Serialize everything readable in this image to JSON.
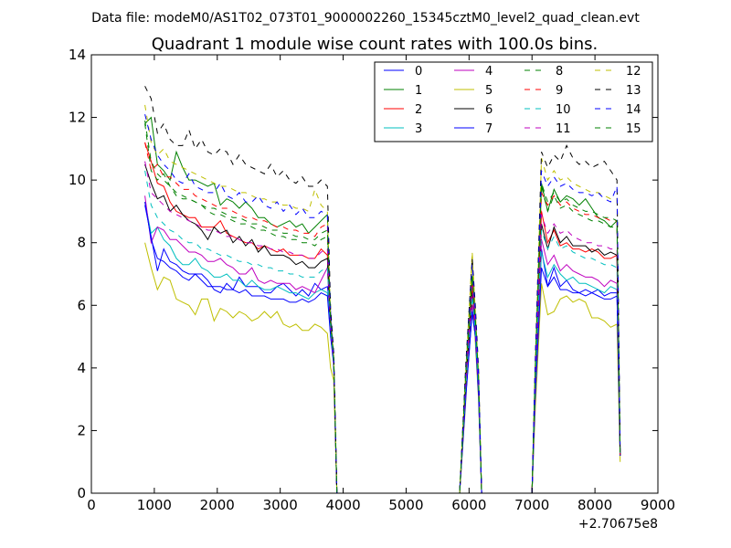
{
  "header": {
    "data_file": "Data file: modeM0/AS1T02_073T01_9000002260_15345cztM0_level2_quad_clean.evt"
  },
  "chart_data": {
    "type": "line",
    "title": "Quadrant 1 module wise count rates with 100.0s bins.",
    "xlabel": "",
    "ylabel": "",
    "x_offset_label": "+2.70675e8",
    "xlim": [
      0,
      9000
    ],
    "ylim": [
      0,
      14
    ],
    "x_ticks": [
      0,
      1000,
      2000,
      3000,
      4000,
      5000,
      6000,
      7000,
      8000,
      9000
    ],
    "y_ticks": [
      0,
      2,
      4,
      6,
      8,
      10,
      12,
      14
    ],
    "grid": false,
    "legend_position": "top-right",
    "legend_columns": 4,
    "x": [
      850,
      950,
      1050,
      1150,
      1250,
      1350,
      1450,
      1550,
      1650,
      1750,
      1850,
      1950,
      2050,
      2150,
      2250,
      2350,
      2450,
      2550,
      2650,
      2750,
      2850,
      2950,
      3050,
      3150,
      3250,
      3350,
      3450,
      3550,
      3650,
      3750,
      3800,
      3850,
      3900,
      4000,
      5000,
      5850,
      5950,
      6050,
      6100,
      6150,
      6200,
      6300,
      7000,
      7050,
      7150,
      7250,
      7350,
      7450,
      7550,
      7650,
      7750,
      7850,
      7950,
      8050,
      8150,
      8250,
      8350,
      8400
    ],
    "series": [
      {
        "name": "0",
        "color": "#0000ff",
        "dash": "solid",
        "values": [
          9.2,
          8.2,
          7.1,
          7.8,
          7.4,
          7.3,
          7.1,
          7.0,
          7.0,
          7.0,
          6.8,
          6.5,
          6.4,
          6.7,
          6.5,
          6.9,
          6.6,
          6.6,
          6.6,
          6.4,
          6.4,
          6.6,
          6.7,
          6.5,
          6.3,
          6.5,
          6.3,
          6.7,
          6.5,
          6.6,
          5.8,
          4.2,
          0,
          0,
          0,
          0,
          3.2,
          5.8,
          5.0,
          3.2,
          0,
          0,
          0,
          3.0,
          7.8,
          6.6,
          7.2,
          6.6,
          6.8,
          6.5,
          6.4,
          6.5,
          6.4,
          6.5,
          6.3,
          6.4,
          6.4,
          1.2
        ]
      },
      {
        "name": "1",
        "color": "#008000",
        "dash": "solid",
        "values": [
          11.8,
          12.0,
          10.5,
          10.3,
          10.0,
          10.9,
          10.4,
          10.0,
          10.0,
          9.9,
          9.8,
          9.9,
          9.2,
          9.4,
          9.3,
          9.1,
          9.3,
          9.1,
          8.8,
          8.8,
          8.6,
          8.5,
          8.6,
          8.7,
          8.5,
          8.6,
          8.3,
          8.5,
          8.7,
          8.9,
          5.2,
          4.3,
          0,
          0,
          0,
          0,
          3.8,
          6.8,
          5.4,
          3.6,
          0,
          0,
          0,
          3.8,
          9.9,
          9.0,
          9.7,
          9.3,
          9.5,
          9.4,
          9.2,
          9.4,
          9.1,
          8.8,
          8.7,
          8.5,
          8.7,
          1.2
        ]
      },
      {
        "name": "2",
        "color": "#ff0000",
        "dash": "solid",
        "values": [
          11.2,
          10.6,
          9.9,
          9.8,
          9.3,
          9.0,
          8.9,
          8.8,
          8.8,
          8.5,
          8.5,
          8.5,
          8.7,
          8.3,
          8.2,
          8.1,
          8.0,
          8.0,
          7.8,
          7.9,
          7.8,
          7.7,
          7.8,
          7.6,
          7.6,
          7.6,
          7.5,
          7.5,
          7.8,
          7.6,
          5.2,
          4.2,
          0,
          0,
          0,
          0,
          3.6,
          6.5,
          5.2,
          3.4,
          0,
          0,
          0,
          3.6,
          9.0,
          8.0,
          8.4,
          7.9,
          8.0,
          7.8,
          7.8,
          7.7,
          7.8,
          7.7,
          7.5,
          7.5,
          7.6,
          1.2
        ]
      },
      {
        "name": "3",
        "color": "#00bfbf",
        "dash": "solid",
        "values": [
          9.3,
          8.3,
          8.5,
          8.1,
          7.9,
          7.5,
          7.3,
          7.3,
          7.5,
          7.2,
          7.1,
          6.9,
          6.9,
          7.0,
          6.8,
          6.8,
          6.6,
          6.8,
          6.6,
          6.5,
          6.5,
          6.6,
          6.5,
          6.4,
          6.4,
          6.3,
          6.2,
          6.4,
          6.5,
          6.4,
          5.0,
          4.2,
          0,
          0,
          0,
          0,
          3.2,
          5.8,
          5.0,
          3.2,
          0,
          0,
          0,
          3.1,
          7.7,
          6.9,
          7.3,
          7.0,
          6.8,
          6.9,
          6.7,
          6.7,
          6.6,
          6.5,
          6.4,
          6.6,
          6.5,
          1.2
        ]
      },
      {
        "name": "4",
        "color": "#bf00bf",
        "dash": "solid",
        "values": [
          9.5,
          8.0,
          8.5,
          8.4,
          8.1,
          8.1,
          7.9,
          7.7,
          7.7,
          7.6,
          7.4,
          7.4,
          7.5,
          7.3,
          7.2,
          7.0,
          7.0,
          7.2,
          6.8,
          6.7,
          6.8,
          6.7,
          6.7,
          6.7,
          6.5,
          6.6,
          6.5,
          6.4,
          6.8,
          7.2,
          5.2,
          4.2,
          0,
          0,
          0,
          0,
          3.3,
          6.0,
          5.2,
          3.3,
          0,
          0,
          0,
          3.3,
          8.1,
          7.3,
          7.6,
          7.1,
          7.3,
          7.1,
          7.0,
          6.9,
          6.9,
          6.8,
          6.6,
          6.8,
          6.7,
          1.2
        ]
      },
      {
        "name": "5",
        "color": "#bfbf00",
        "dash": "solid",
        "values": [
          8.0,
          7.2,
          6.5,
          6.9,
          6.8,
          6.2,
          6.1,
          6.0,
          5.7,
          6.2,
          6.2,
          5.5,
          5.9,
          5.8,
          5.6,
          5.8,
          5.7,
          5.5,
          5.6,
          5.8,
          5.6,
          5.8,
          5.4,
          5.3,
          5.4,
          5.2,
          5.2,
          5.4,
          5.3,
          5.1,
          4.0,
          3.6,
          0,
          0,
          0,
          0,
          3.0,
          7.6,
          4.8,
          3.0,
          0,
          0,
          0,
          2.6,
          6.7,
          5.7,
          5.8,
          6.2,
          6.3,
          6.1,
          6.2,
          6.1,
          5.6,
          5.6,
          5.5,
          5.3,
          5.4,
          1.0
        ]
      },
      {
        "name": "6",
        "color": "#000000",
        "dash": "solid",
        "values": [
          10.5,
          9.9,
          9.4,
          9.5,
          9.0,
          9.2,
          8.9,
          8.7,
          8.6,
          8.4,
          8.1,
          8.5,
          8.3,
          8.4,
          8.0,
          8.2,
          7.9,
          8.1,
          7.7,
          7.9,
          7.6,
          7.6,
          7.6,
          7.5,
          7.3,
          7.4,
          7.2,
          7.2,
          7.4,
          7.5,
          5.2,
          4.3,
          0,
          0,
          0,
          0,
          3.6,
          6.4,
          5.3,
          3.4,
          0,
          0,
          0,
          3.5,
          8.6,
          7.8,
          8.5,
          8.0,
          8.2,
          7.9,
          7.9,
          7.9,
          7.7,
          7.8,
          7.6,
          7.7,
          7.6,
          1.2
        ]
      },
      {
        "name": "7",
        "color": "#0000ff",
        "dash": "solid",
        "values": [
          9.3,
          8.1,
          7.5,
          7.4,
          7.2,
          7.1,
          6.9,
          6.8,
          7.0,
          6.8,
          6.6,
          6.6,
          6.6,
          6.5,
          6.5,
          6.4,
          6.5,
          6.3,
          6.3,
          6.3,
          6.2,
          6.2,
          6.2,
          6.1,
          6.1,
          6.2,
          6.1,
          6.2,
          6.4,
          6.3,
          5.0,
          4.1,
          0,
          0,
          0,
          0,
          3.1,
          5.8,
          5.0,
          3.1,
          0,
          0,
          0,
          3.0,
          7.2,
          6.6,
          6.9,
          6.5,
          6.5,
          6.4,
          6.4,
          6.3,
          6.4,
          6.3,
          6.2,
          6.2,
          6.3,
          1.2
        ]
      },
      {
        "name": "8",
        "color": "#008000",
        "dash": "dash",
        "values": [
          11.8,
          10.3,
          10.0,
          10.2,
          9.8,
          9.5,
          9.4,
          9.4,
          9.3,
          9.2,
          9.0,
          8.9,
          8.9,
          8.8,
          8.7,
          8.6,
          8.6,
          8.5,
          8.4,
          8.4,
          8.3,
          8.2,
          8.2,
          8.1,
          8.1,
          8.0,
          8.0,
          7.9,
          8.1,
          8.2,
          5.4,
          4.3,
          0,
          0,
          0,
          0,
          3.8,
          6.8,
          5.5,
          3.6,
          0,
          0,
          0,
          3.8,
          9.8,
          9.0,
          9.5,
          9.1,
          9.2,
          9.0,
          8.9,
          8.8,
          8.7,
          8.7,
          8.6,
          8.5,
          8.5,
          1.2
        ]
      },
      {
        "name": "9",
        "color": "#ff0000",
        "dash": "dash",
        "values": [
          11.2,
          10.3,
          10.5,
          10.1,
          10.1,
          9.9,
          9.7,
          9.7,
          9.5,
          9.4,
          9.3,
          9.2,
          9.1,
          9.1,
          9.0,
          8.9,
          8.8,
          8.8,
          8.7,
          8.7,
          8.6,
          8.5,
          8.5,
          8.4,
          8.4,
          8.3,
          8.3,
          8.2,
          8.5,
          8.6,
          5.5,
          4.3,
          0,
          0,
          0,
          0,
          3.8,
          6.9,
          5.6,
          3.7,
          0,
          0,
          0,
          3.8,
          9.6,
          9.2,
          9.5,
          9.2,
          9.3,
          9.1,
          9.0,
          8.9,
          8.9,
          8.8,
          8.8,
          8.7,
          8.7,
          1.2
        ]
      },
      {
        "name": "10",
        "color": "#00bfbf",
        "dash": "dash",
        "values": [
          10.3,
          9.2,
          8.8,
          8.6,
          8.4,
          8.3,
          8.1,
          8.0,
          8.0,
          7.8,
          7.8,
          7.7,
          7.6,
          7.6,
          7.5,
          7.4,
          7.4,
          7.3,
          7.3,
          7.2,
          7.2,
          7.1,
          7.1,
          7.0,
          7.0,
          6.9,
          6.9,
          6.9,
          7.1,
          7.2,
          5.2,
          4.2,
          0,
          0,
          0,
          0,
          3.5,
          6.3,
          5.2,
          3.4,
          0,
          0,
          0,
          3.5,
          8.4,
          7.8,
          8.2,
          7.8,
          7.9,
          7.7,
          7.6,
          7.5,
          7.5,
          7.4,
          7.3,
          7.3,
          7.2,
          1.2
        ]
      },
      {
        "name": "11",
        "color": "#bf00bf",
        "dash": "dash",
        "values": [
          10.6,
          9.6,
          9.4,
          9.2,
          9.0,
          8.9,
          8.8,
          8.7,
          8.6,
          8.5,
          8.4,
          8.4,
          8.3,
          8.2,
          8.2,
          8.1,
          8.0,
          8.0,
          7.9,
          7.9,
          7.8,
          7.8,
          7.7,
          7.7,
          7.6,
          7.6,
          7.5,
          7.5,
          7.7,
          7.8,
          5.3,
          4.2,
          0,
          0,
          0,
          0,
          3.6,
          6.6,
          5.4,
          3.5,
          0,
          0,
          0,
          3.6,
          8.9,
          8.3,
          8.6,
          8.3,
          8.4,
          8.2,
          8.1,
          8.0,
          8.0,
          7.9,
          7.9,
          7.8,
          7.8,
          1.2
        ]
      },
      {
        "name": "12",
        "color": "#bfbf00",
        "dash": "dash",
        "values": [
          12.4,
          11.2,
          10.8,
          11.0,
          10.6,
          10.5,
          10.4,
          10.3,
          10.2,
          10.1,
          10.0,
          9.9,
          9.8,
          9.8,
          9.7,
          9.6,
          9.6,
          9.5,
          9.4,
          9.4,
          9.3,
          9.3,
          9.2,
          9.2,
          9.1,
          9.1,
          9.0,
          9.7,
          9.2,
          9.0,
          5.6,
          4.4,
          0,
          0,
          0,
          0,
          4.0,
          7.7,
          5.8,
          3.8,
          0,
          0,
          0,
          4.0,
          10.7,
          10.0,
          10.3,
          10.0,
          10.1,
          9.9,
          9.8,
          9.7,
          9.6,
          9.6,
          9.5,
          9.4,
          9.4,
          1.3
        ]
      },
      {
        "name": "13",
        "color": "#000000",
        "dash": "dash",
        "values": [
          13.0,
          12.6,
          11.5,
          11.8,
          11.3,
          11.1,
          11.1,
          11.6,
          11.0,
          11.3,
          10.9,
          10.8,
          11.0,
          10.9,
          10.5,
          10.8,
          10.5,
          10.4,
          10.3,
          10.2,
          10.5,
          10.1,
          10.3,
          10.0,
          9.9,
          10.1,
          9.8,
          9.8,
          10.0,
          9.8,
          5.9,
          4.5,
          0,
          0,
          0,
          0,
          4.2,
          7.5,
          6.0,
          4.0,
          0,
          0,
          0,
          4.2,
          10.9,
          10.4,
          10.8,
          10.6,
          11.1,
          10.7,
          10.5,
          10.6,
          10.4,
          10.5,
          10.6,
          10.3,
          10.0,
          1.3
        ]
      },
      {
        "name": "14",
        "color": "#0000ff",
        "dash": "dash",
        "values": [
          12.1,
          11.3,
          10.8,
          10.5,
          10.3,
          10.0,
          9.9,
          10.2,
          9.8,
          9.7,
          9.6,
          9.6,
          9.9,
          9.5,
          9.4,
          9.6,
          9.3,
          9.3,
          9.5,
          9.2,
          9.1,
          9.3,
          9.0,
          9.2,
          8.9,
          9.1,
          8.8,
          8.8,
          9.0,
          8.9,
          5.6,
          4.4,
          0,
          0,
          0,
          0,
          4.0,
          7.3,
          5.8,
          3.8,
          0,
          0,
          0,
          4.0,
          10.3,
          9.8,
          10.1,
          9.8,
          9.9,
          9.7,
          9.6,
          9.6,
          9.5,
          9.6,
          9.4,
          9.3,
          9.8,
          1.3
        ]
      },
      {
        "name": "15",
        "color": "#008000",
        "dash": "dash",
        "values": [
          11.9,
          10.6,
          10.2,
          10.0,
          9.8,
          9.6,
          9.5,
          9.4,
          9.3,
          9.2,
          9.1,
          9.1,
          9.0,
          8.9,
          8.8,
          8.8,
          8.7,
          8.6,
          8.6,
          8.5,
          8.4,
          8.4,
          8.3,
          8.3,
          8.2,
          8.2,
          8.1,
          8.1,
          8.3,
          8.4,
          5.5,
          4.3,
          0,
          0,
          0,
          0,
          3.9,
          7.0,
          5.6,
          3.7,
          0,
          0,
          0,
          3.9,
          9.9,
          9.3,
          9.6,
          9.3,
          9.4,
          9.2,
          9.1,
          9.0,
          9.0,
          8.9,
          8.8,
          8.8,
          8.7,
          1.2
        ]
      }
    ]
  }
}
